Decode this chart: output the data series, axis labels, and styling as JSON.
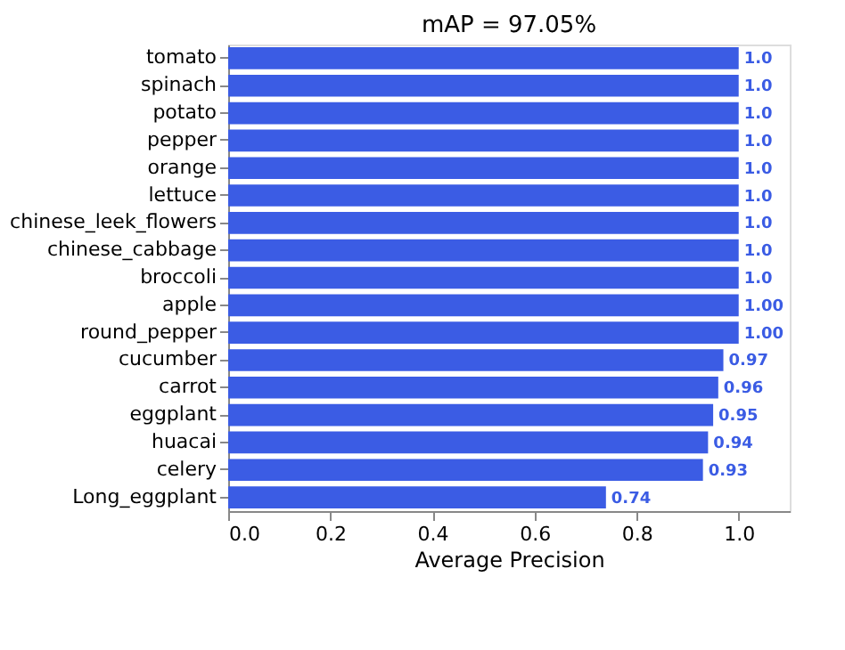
{
  "chart_data": {
    "type": "bar",
    "orientation": "horizontal",
    "title": "mAP = 97.05%",
    "xlabel": "Average Precision",
    "categories": [
      "tomato",
      "spinach",
      "potato",
      "pepper",
      "orange",
      "lettuce",
      "chinese_leek_flowers",
      "chinese_cabbage",
      "broccoli",
      "apple",
      "round_pepper",
      "cucumber",
      "carrot",
      "eggplant",
      "huacai",
      "celery",
      "Long_eggplant"
    ],
    "values": [
      1.0,
      1.0,
      1.0,
      1.0,
      1.0,
      1.0,
      1.0,
      1.0,
      1.0,
      1.0,
      1.0,
      0.97,
      0.96,
      0.95,
      0.94,
      0.93,
      0.74
    ],
    "value_labels": [
      "1.0",
      "1.0",
      "1.0",
      "1.0",
      "1.0",
      "1.0",
      "1.0",
      "1.0",
      "1.0",
      "1.00",
      "1.00",
      "0.97",
      "0.96",
      "0.95",
      "0.94",
      "0.93",
      "0.74"
    ],
    "color": "#3b5ce4",
    "xlim": [
      0,
      1.1
    ],
    "xticks": [
      {
        "value": 0,
        "label": "0.0"
      },
      0.2,
      0.4,
      0.6,
      0.8,
      {
        "value": 1,
        "label": "1.0"
      }
    ],
    "grid": false
  }
}
